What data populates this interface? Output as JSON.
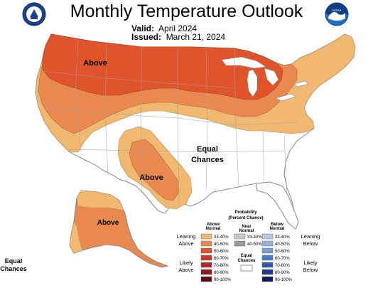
{
  "header": {
    "title": "Monthly Temperature Outlook",
    "valid_label": "Valid:",
    "valid_value": "April 2024",
    "issued_label": "Issued:",
    "issued_value": "March 21, 2024"
  },
  "logos": {
    "left": "doc-seal",
    "right": "noaa-logo",
    "right_text": "NOAA"
  },
  "map": {
    "labels": {
      "above_north": "Above",
      "above_texas": "Above",
      "above_alaska": "Above",
      "equal_chances_line1": "Equal",
      "equal_chances_line2": "Chances",
      "hawaii_line1": "Equal",
      "hawaii_line2": "Chances"
    },
    "colors": {
      "above_33_40": "#f0b870",
      "above_40_50": "#e88a50",
      "above_50_60": "#e0542c",
      "water": "#ffffff",
      "boundary": "#9a9a9a"
    }
  },
  "legend": {
    "title_line1": "Probability",
    "title_line2": "(Percent Chance)",
    "col_above_1": "Above",
    "col_above_2": "Normal",
    "col_near_1": "Near",
    "col_near_2": "Normal",
    "col_below_1": "Below",
    "col_below_2": "Normal",
    "leaning_above_1": "Leaning",
    "leaning_above_2": "Above",
    "likely_above_1": "Likely",
    "likely_above_2": "Above",
    "leaning_below_1": "Leaning",
    "leaning_below_2": "Below",
    "likely_below_1": "Likely",
    "likely_below_2": "Below",
    "equal_1": "Equal",
    "equal_2": "Chances",
    "above": [
      {
        "label": "33-40%",
        "color": "#f0b870"
      },
      {
        "label": "40-50%",
        "color": "#e88a50"
      },
      {
        "label": "50-60%",
        "color": "#e0542c"
      },
      {
        "label": "60-70%",
        "color": "#c83a28"
      },
      {
        "label": "70-80%",
        "color": "#b02828"
      },
      {
        "label": "80-90%",
        "color": "#8c1c1c"
      },
      {
        "label": "90-100%",
        "color": "#5a1010"
      }
    ],
    "near": [
      {
        "label": "33-40%",
        "color": "#c8c8c8"
      },
      {
        "label": "40-50%",
        "color": "#9a9a9a"
      }
    ],
    "below": [
      {
        "label": "33-40%",
        "color": "#b8cce8"
      },
      {
        "label": "40-50%",
        "color": "#98b4dc"
      },
      {
        "label": "50-60%",
        "color": "#78a0d4"
      },
      {
        "label": "60-70%",
        "color": "#4a7ec0"
      },
      {
        "label": "70-80%",
        "color": "#2c58a8"
      },
      {
        "label": "80-90%",
        "color": "#1c3a88"
      },
      {
        "label": "90-100%",
        "color": "#101c58"
      }
    ]
  }
}
